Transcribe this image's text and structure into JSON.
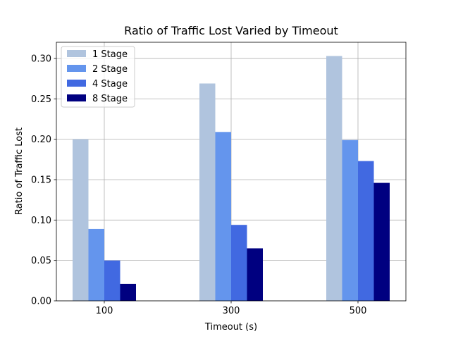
{
  "chart_data": {
    "type": "bar",
    "title": "Ratio of Traffic Lost Varied by Timeout",
    "xlabel": "Timeout (s)",
    "ylabel": "Ratio of Traffic Lost",
    "categories": [
      "100",
      "300",
      "500"
    ],
    "ylim": [
      0,
      0.32
    ],
    "yticks": [
      0.0,
      0.05,
      0.1,
      0.15,
      0.2,
      0.25,
      0.3
    ],
    "ytick_labels": [
      "0.00",
      "0.05",
      "0.10",
      "0.15",
      "0.20",
      "0.25",
      "0.30"
    ],
    "grid": true,
    "legend_position": "top-left",
    "series": [
      {
        "name": "1 Stage",
        "color": "#b0c4de",
        "values": [
          0.2,
          0.269,
          0.303
        ]
      },
      {
        "name": "2 Stage",
        "color": "#6495ed",
        "values": [
          0.089,
          0.209,
          0.199
        ]
      },
      {
        "name": "4 Stage",
        "color": "#4169e1",
        "values": [
          0.05,
          0.094,
          0.173
        ]
      },
      {
        "name": "8 Stage",
        "color": "#000080",
        "values": [
          0.021,
          0.065,
          0.146
        ]
      }
    ]
  }
}
